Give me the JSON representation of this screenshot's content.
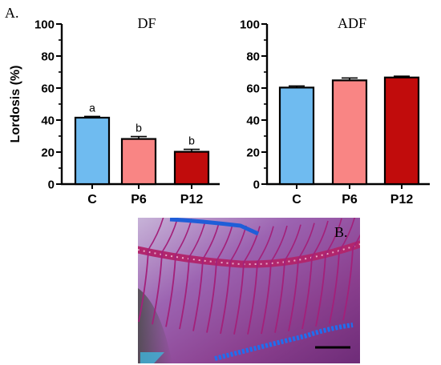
{
  "panel_a_label": "A.",
  "panel_b_label": "B.",
  "chart_data": [
    {
      "type": "bar",
      "title": "DF",
      "ylabel": "Lordosis (%)",
      "categories": [
        "C",
        "P6",
        "P12"
      ],
      "values": [
        41.5,
        28.2,
        20.2
      ],
      "errors": [
        0.8,
        1.5,
        1.5
      ],
      "annotations": [
        "a",
        "b",
        "b"
      ],
      "ylim": [
        0,
        100
      ],
      "yticks": [
        0,
        20,
        40,
        60,
        80,
        100
      ],
      "ytick_labels": [
        "0",
        "20",
        "40",
        "60",
        "80",
        "100"
      ],
      "colors": [
        "#6fbbf0",
        "#f98584",
        "#c10c0c"
      ],
      "grid": false
    },
    {
      "type": "bar",
      "title": "ADF",
      "ylabel": "",
      "categories": [
        "C",
        "P6",
        "P12"
      ],
      "values": [
        60.3,
        64.8,
        66.6
      ],
      "errors": [
        1.0,
        1.5,
        0.8
      ],
      "annotations": [],
      "ylim": [
        0,
        100
      ],
      "yticks": [
        0,
        20,
        40,
        60,
        80,
        100
      ],
      "ytick_labels": [
        "0",
        "20",
        "40",
        "60",
        "80",
        "100"
      ],
      "colors": [
        "#6fbbf0",
        "#f98584",
        "#c10c0c"
      ],
      "grid": false
    }
  ],
  "photo": {
    "background": "#8a3f8e",
    "spine_color": "#b1266d",
    "fin_color": "#1f5ed8"
  }
}
